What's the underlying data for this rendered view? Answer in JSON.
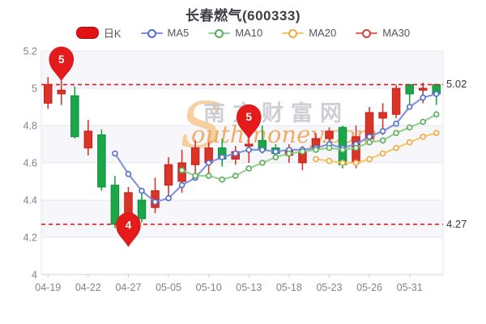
{
  "page": {
    "title": "长春燃气(600333)"
  },
  "legend": {
    "items": [
      {
        "label": "日K",
        "type": "rect",
        "color": "#e01212",
        "border": "#b50d0d"
      },
      {
        "label": "MA5",
        "type": "line",
        "color": "#7b90dc",
        "marker_border": "#4f6ecf"
      },
      {
        "label": "MA10",
        "type": "line",
        "color": "#93cd93",
        "marker_border": "#55b055"
      },
      {
        "label": "MA20",
        "type": "line",
        "color": "#f7c667",
        "marker_border": "#f2a93b"
      },
      {
        "label": "MA30",
        "type": "line",
        "color": "#e86060",
        "marker_border": "#db3c3c"
      }
    ]
  },
  "price_markers": {
    "max_label": "5.02",
    "max_value": 5.02,
    "min_label": "4.27",
    "min_value": 4.27,
    "line_color": "#e01d1d"
  },
  "pins": [
    {
      "label": "5",
      "index": 1,
      "price": 5.04
    },
    {
      "label": "4",
      "index": 6,
      "price": 4.15
    },
    {
      "label": "5",
      "index": 15,
      "price": 4.73
    }
  ],
  "watermark": {
    "initial": "S",
    "cn": "南方财富网",
    "en": "outhmoney.com",
    "initial_color": "#f6c488",
    "cn_color": "#c9c9cf",
    "en_color": "#efa04e"
  },
  "chart_data": {
    "type": "candlestick",
    "title": "长春燃气(600333)",
    "ylim": [
      4.0,
      5.2
    ],
    "y_ticks": [
      "5.2",
      "5",
      "4.8",
      "4.6",
      "4.4",
      "4.2",
      "4"
    ],
    "y_tick_values": [
      5.2,
      5.0,
      4.8,
      4.6,
      4.4,
      4.2,
      4.0
    ],
    "x_tick_labels": [
      "04-19",
      "04-22",
      "04-27",
      "05-05",
      "05-10",
      "05-13",
      "05-18",
      "05-23",
      "05-26",
      "05-31"
    ],
    "x_tick_indices": [
      0,
      3,
      6,
      9,
      12,
      15,
      18,
      21,
      24,
      27
    ],
    "grid": true,
    "legend_position": "top",
    "num_days": 30,
    "candles_ohlc_format": "[open, close, low, high]",
    "candles": [
      [
        4.92,
        5.02,
        4.89,
        5.06
      ],
      [
        4.97,
        4.99,
        4.91,
        5.04
      ],
      [
        4.96,
        4.74,
        4.73,
        5.01
      ],
      [
        4.68,
        4.77,
        4.64,
        4.83
      ],
      [
        4.75,
        4.47,
        4.45,
        4.78
      ],
      [
        4.48,
        4.27,
        4.25,
        4.53
      ],
      [
        4.31,
        4.44,
        4.15,
        4.47
      ],
      [
        4.4,
        4.3,
        4.28,
        4.44
      ],
      [
        4.36,
        4.45,
        4.33,
        4.52
      ],
      [
        4.48,
        4.59,
        4.42,
        4.63
      ],
      [
        4.5,
        4.6,
        4.44,
        4.67
      ],
      [
        4.59,
        4.68,
        4.53,
        4.72
      ],
      [
        4.6,
        4.68,
        4.54,
        4.71
      ],
      [
        4.68,
        4.62,
        4.58,
        4.73
      ],
      [
        4.62,
        4.66,
        4.59,
        4.69
      ],
      [
        4.69,
        4.7,
        4.6,
        4.73
      ],
      [
        4.72,
        4.67,
        4.65,
        4.8
      ],
      [
        4.68,
        4.65,
        4.62,
        4.7
      ],
      [
        4.64,
        4.67,
        4.6,
        4.7
      ],
      [
        4.6,
        4.66,
        4.56,
        4.69
      ],
      [
        4.68,
        4.73,
        4.66,
        4.76
      ],
      [
        4.73,
        4.77,
        4.7,
        4.79
      ],
      [
        4.79,
        4.59,
        4.57,
        4.8
      ],
      [
        4.6,
        4.74,
        4.57,
        4.8
      ],
      [
        4.73,
        4.87,
        4.71,
        4.9
      ],
      [
        4.84,
        4.87,
        4.75,
        4.92
      ],
      [
        4.86,
        5.0,
        4.84,
        5.02
      ],
      [
        5.02,
        4.97,
        4.89,
        5.02
      ],
      [
        4.99,
        5.0,
        4.92,
        5.03
      ],
      [
        5.02,
        4.97,
        4.91,
        5.02
      ]
    ],
    "series": [
      {
        "name": "MA5",
        "start_index": 5,
        "values": [
          4.65,
          4.54,
          4.45,
          4.39,
          4.41,
          4.48,
          4.52,
          4.6,
          4.63,
          4.65,
          4.67,
          4.67,
          4.66,
          4.67,
          4.67,
          4.68,
          4.7,
          4.68,
          4.7,
          4.74,
          4.77,
          4.81,
          4.9,
          4.95,
          4.97
        ]
      },
      {
        "name": "MA10",
        "start_index": 10,
        "values": [
          4.56,
          4.53,
          4.53,
          4.51,
          4.53,
          4.57,
          4.6,
          4.63,
          4.65,
          4.66,
          4.67,
          4.68,
          4.67,
          4.68,
          4.71,
          4.72,
          4.76,
          4.79,
          4.82,
          4.86
        ]
      },
      {
        "name": "MA20",
        "start_index": 20,
        "values": [
          4.62,
          4.61,
          4.6,
          4.6,
          4.62,
          4.65,
          4.68,
          4.71,
          4.74,
          4.76
        ]
      },
      {
        "name": "MA30",
        "start_index": 30,
        "values": []
      }
    ],
    "colors": {
      "up_fill": "#da3328",
      "up_stroke": "#c32017",
      "down_fill": "#1ca64a",
      "down_stroke": "#0f8f3c",
      "ma5": "#7b90dc",
      "ma5_marker": "#4f6ecf",
      "ma10": "#93cd93",
      "ma10_marker": "#55b055",
      "ma20": "#f7c667",
      "ma20_marker": "#f2a93b",
      "pin": "#e51a1a",
      "band": "#f1f1f8",
      "grid": "#e5e5ef",
      "axis": "#cfcfd8",
      "tick_text": "#82828c"
    }
  }
}
